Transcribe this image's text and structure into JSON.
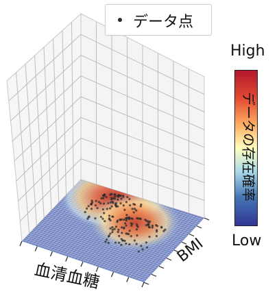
{
  "chart_data": {
    "type": "surface3d",
    "legend": {
      "marker": "•",
      "label": "データ点",
      "placement": "top-center"
    },
    "xlabel": "血清血糖",
    "ylabel": "BMI",
    "zlabel": "",
    "colorbar": {
      "label": "データの存在確率",
      "high_label": "High",
      "low_label": "Low",
      "colormap": "RdYlBu_r"
    },
    "grid": true,
    "peaks": [
      {
        "name": "left",
        "x": 0.45,
        "y": 0.62,
        "height": 1.0
      },
      {
        "name": "right",
        "x": 0.72,
        "y": 0.42,
        "height": 0.95
      }
    ],
    "scatter_points": 180
  },
  "colors": {
    "high": "#b2182b",
    "mid": "#ffffbf",
    "low": "#313695",
    "points": "#2b2b2b",
    "grid": "#bdbdbd"
  }
}
